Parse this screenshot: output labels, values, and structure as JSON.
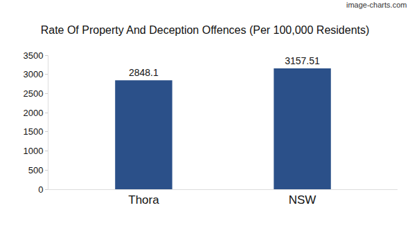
{
  "chart_data": {
    "type": "bar",
    "title": "Rate Of Property And Deception Offences (Per 100,000 Residents)",
    "categories": [
      "Thora",
      "NSW"
    ],
    "values": [
      2848.1,
      3157.51
    ],
    "color": "#2b5089",
    "ylim": [
      0,
      3500
    ],
    "yticks": [
      0,
      500,
      1000,
      1500,
      2000,
      2500,
      3000,
      3500
    ],
    "grid": false,
    "data_labels": true,
    "annotations": [
      "image-charts.com"
    ]
  }
}
